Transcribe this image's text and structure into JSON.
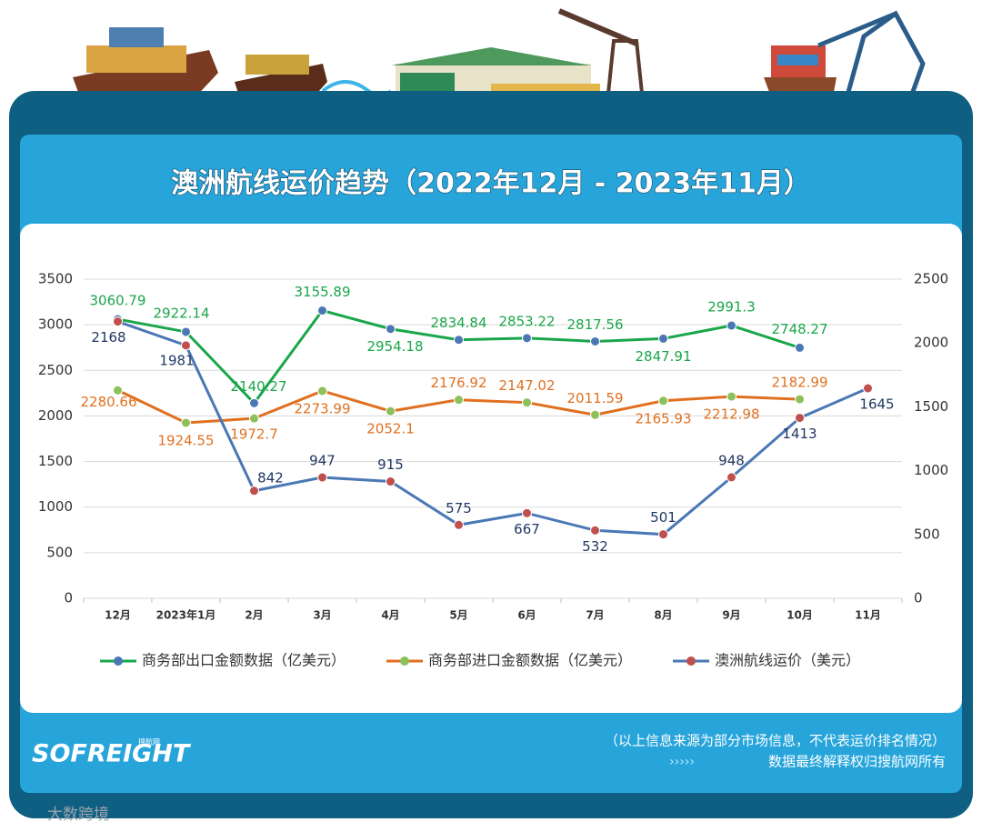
{
  "chart_data": {
    "type": "line",
    "title": "澳洲航线运价趋势（2022年12月 - 2023年11月）",
    "categories": [
      "12月",
      "2023年1月",
      "2月",
      "3月",
      "4月",
      "5月",
      "6月",
      "7月",
      "8月",
      "9月",
      "10月",
      "11月"
    ],
    "series": [
      {
        "name": "商务部出口金额数据（亿美元）",
        "color": "#1aa64a",
        "marker_color": "#4a78b5",
        "label_color": "#1aa64a",
        "values": [
          3060.79,
          2922.14,
          2140.27,
          3155.89,
          2954.18,
          2834.84,
          2853.22,
          2817.56,
          2847.91,
          2991.3,
          2748.27,
          null
        ]
      },
      {
        "name": "商务部进口金额数据（亿美元）",
        "color": "#e07020",
        "marker_color": "#8dc05a",
        "label_color": "#e07020",
        "values": [
          2280.66,
          1924.55,
          1972.7,
          2273.99,
          2052.1,
          2176.92,
          2147.02,
          2011.59,
          2165.93,
          2212.98,
          2182.99,
          null
        ]
      },
      {
        "name": "澳洲航线运价（美元）",
        "color": "#4a78b5",
        "marker_color": "#c0504d",
        "label_color": "#1f3864",
        "axis": "y2",
        "values": [
          2168,
          1981,
          842,
          947,
          915,
          575,
          667,
          532,
          501,
          948,
          1413,
          1645
        ]
      }
    ],
    "ylim": [
      0,
      3500
    ],
    "yticks": [
      0,
      500,
      1000,
      1500,
      2000,
      2500,
      3000,
      3500
    ],
    "y2lim": [
      0,
      2500
    ],
    "y2ticks": [
      0,
      500,
      1000,
      1500,
      2000,
      2500
    ],
    "grid": true,
    "legend": "bottom",
    "source_note": "（以上信息来源为部分市场信息，不代表运价排名情况）",
    "copyright": "数据最终解释权归搜航网所有",
    "brand": "SOFREIGHT",
    "brand_sub": "搜航网",
    "watermark": "大数跨境"
  }
}
